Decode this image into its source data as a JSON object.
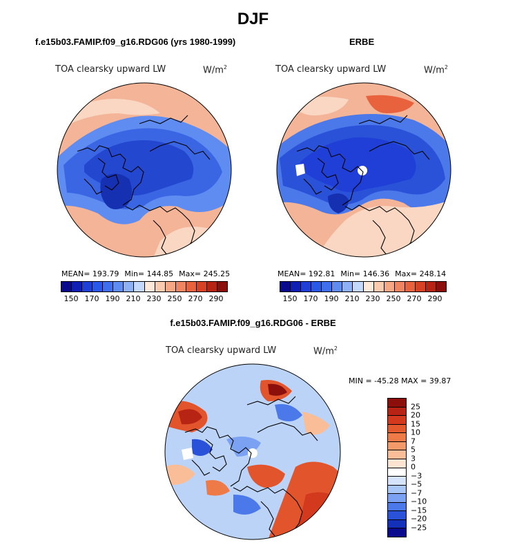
{
  "title": "DJF",
  "panels": [
    {
      "title": "f.e15b03.FAMIP.f09_g16.RDG06 (yrs 1980-1999)",
      "variable": "TOA clearsky upward LW",
      "units": "W/m",
      "units_exp": "2",
      "mean": "MEAN= 193.79",
      "min": "Min= 144.85",
      "max": "Max= 245.25",
      "hole": false
    },
    {
      "title": "ERBE",
      "variable": "TOA clearsky upward LW",
      "units": "W/m",
      "units_exp": "2",
      "mean": "MEAN= 192.81",
      "min": "Min= 146.36",
      "max": "Max= 248.14",
      "hole": true
    }
  ],
  "diff_panel": {
    "title": "f.e15b03.FAMIP.f09_g16.RDG06 - ERBE",
    "variable": "TOA clearsky upward LW",
    "units": "W/m",
    "units_exp": "2",
    "minmax": "MIN = -45.28 MAX =  39.87"
  },
  "abs_colorbar": {
    "colors": [
      "#0a0a8c",
      "#1020b4",
      "#1f3fd6",
      "#2a58e8",
      "#3f6fee",
      "#5e8cf0",
      "#8eb0f5",
      "#c4d8fb",
      "#fde8da",
      "#fbcbb0",
      "#f6a885",
      "#f08562",
      "#e8623d",
      "#d84224",
      "#b82413",
      "#8c0f0b"
    ],
    "labels": [
      "150",
      "170",
      "190",
      "210",
      "230",
      "250",
      "270",
      "290"
    ]
  },
  "diff_colorbar": {
    "colors": [
      "#8c0f0b",
      "#b82413",
      "#d33a1d",
      "#e45a2f",
      "#ee7a48",
      "#f49a6a",
      "#f9be98",
      "#fde3d1",
      "#ffffff",
      "#d5e4fb",
      "#a8c6f6",
      "#7aa1f2",
      "#4c79ea",
      "#2a52d9",
      "#1330b8",
      "#0a0a8c"
    ],
    "labels": [
      "25",
      "20",
      "15",
      "10",
      "7",
      "5",
      "3",
      "0",
      "−3",
      "−5",
      "−7",
      "−10",
      "−15",
      "−20",
      "−25"
    ]
  },
  "map_colors": {
    "ocean_warm": "#f3b497",
    "mid_warm": "#f9d7c2",
    "cold_1": "#3a66e4",
    "cold_2": "#2447d0",
    "cold_3": "#1530b0",
    "diff_base": "#bcd3f8",
    "diff_red": "#e2552c",
    "diff_blue": "#3f6fee",
    "coast": "#000000"
  }
}
